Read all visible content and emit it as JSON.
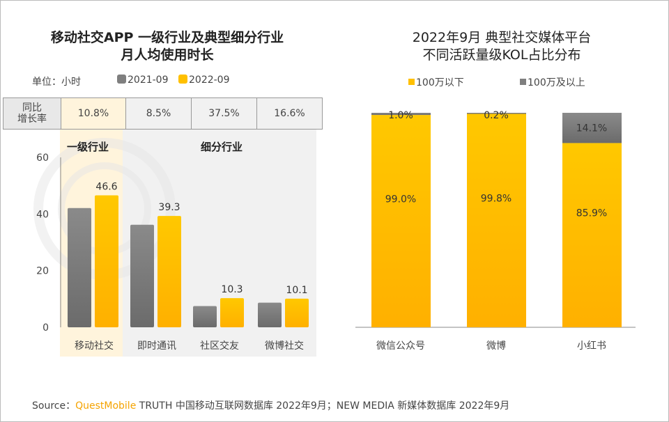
{
  "watermark": "QUESTMOBILE",
  "colors": {
    "gray": "#7f7f7f",
    "yellow": "#ffc000",
    "highlight": "#fff4dc",
    "panel": "#f1f1f1"
  },
  "chart_data": [
    {
      "type": "bar",
      "title": "移动社交APP 一级行业及典型细分行业\n月人均使用时长",
      "title_lines": [
        "移动社交APP 一级行业及典型细分行业",
        "月人均使用时长"
      ],
      "unit": "单位：小时",
      "categories": [
        "移动社交",
        "即时通讯",
        "社区交友",
        "微博社交"
      ],
      "series": [
        {
          "name": "2021-09",
          "color": "#7f7f7f",
          "values": [
            42.1,
            36.2,
            7.5,
            8.7
          ]
        },
        {
          "name": "2022-09",
          "color": "#ffc000",
          "values": [
            46.6,
            39.3,
            10.3,
            10.1
          ],
          "labels": [
            "46.6",
            "39.3",
            "10.3",
            "10.1"
          ]
        }
      ],
      "growth_label": [
        "同比",
        "增长率"
      ],
      "growth": [
        "10.8%",
        "8.5%",
        "37.5%",
        "16.6%"
      ],
      "groups": [
        "一级行业",
        "细分行业"
      ],
      "yticks": [
        "0",
        "20",
        "40",
        "60"
      ],
      "ylim": [
        0,
        60
      ],
      "grid": false,
      "legend": "top"
    },
    {
      "type": "bar",
      "stacked": true,
      "percent": true,
      "title_lines": [
        "2022年9月 典型社交媒体平台",
        "不同活跃量级KOL占比分布"
      ],
      "categories": [
        "微信公众号",
        "微博",
        "小红书"
      ],
      "series": [
        {
          "name": "100万以下",
          "color": "#ffc000",
          "values": [
            99.0,
            99.8,
            85.9
          ],
          "labels": [
            "99.0%",
            "99.8%",
            "85.9%"
          ]
        },
        {
          "name": "100万及以上",
          "color": "#7f7f7f",
          "values": [
            1.0,
            0.2,
            14.1
          ],
          "labels": [
            "1.0%",
            "0.2%",
            "14.1%"
          ]
        }
      ],
      "ylim": [
        0,
        100
      ],
      "grid": false,
      "legend": "top"
    }
  ],
  "source": {
    "prefix": "Source：",
    "brand": "QuestMobile",
    "text": " TRUTH 中国移动互联网数据库 2022年9月；NEW MEDIA 新媒体数据库 2022年9月"
  }
}
